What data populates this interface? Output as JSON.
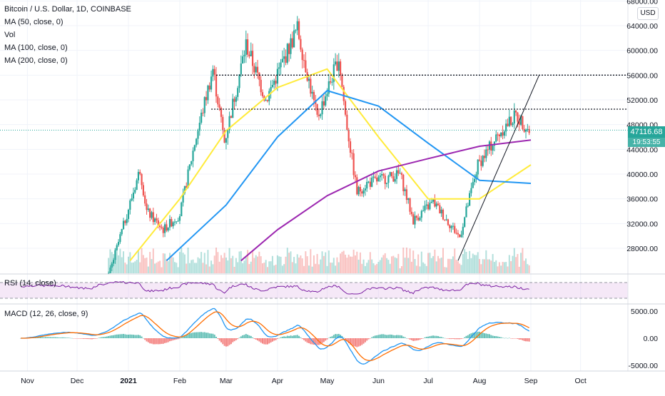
{
  "legend": {
    "title": "Bitcoin / U.S. Dollar, 1D, COINBASE",
    "indicators": [
      "MA (50, close, 0)",
      "Vol",
      "MA (100, close, 0)",
      "MA (200, close, 0)"
    ]
  },
  "price_axis": {
    "ticks": [
      "68000.00",
      "64000.00",
      "60000.00",
      "56000.00",
      "52000.00",
      "48000.00",
      "44000.00",
      "40000.00",
      "36000.00",
      "32000.00",
      "28000.00"
    ],
    "currency": "USD"
  },
  "last_price": {
    "value": "47116.68",
    "countdown": "19:53:55",
    "color": "#26a69a"
  },
  "rsi": {
    "label": "RSI (14, close)"
  },
  "macd": {
    "label": "MACD (12, 26, close, 9)",
    "ticks": [
      "5000.00",
      "0.00",
      "-5000.00"
    ]
  },
  "time_axis": {
    "labels": [
      "Nov",
      "Dec",
      "2021",
      "Feb",
      "Mar",
      "Apr",
      "May",
      "Jun",
      "Jul",
      "Aug",
      "Sep",
      "Oct"
    ]
  },
  "colors": {
    "up": "#26a69a",
    "down": "#ef5350",
    "ma50": "#ffeb3b",
    "ma100": "#2196f3",
    "ma200": "#9c27b0",
    "macd": "#2196f3",
    "signal": "#ff6d00",
    "rsi": "#7b1fa2"
  },
  "chart_data": [
    {
      "type": "line",
      "title": "Bitcoin / U.S. Dollar, 1D, COINBASE",
      "x": [
        "Nov",
        "Dec",
        "2021",
        "Feb",
        "Mar",
        "Apr",
        "May",
        "Jun",
        "Jul",
        "Aug",
        "Sep",
        "Oct"
      ],
      "ylim": [
        26000,
        68000
      ],
      "series": [
        {
          "name": "MA (50, close, 0)",
          "points": [
            [
              "2021-01-02",
              26000
            ],
            [
              "2021-02-01",
              36000
            ],
            [
              "2021-03-01",
              47000
            ],
            [
              "2021-04-01",
              54000
            ],
            [
              "2021-05-01",
              57000
            ],
            [
              "2021-06-01",
              46000
            ],
            [
              "2021-07-01",
              36000
            ],
            [
              "2021-08-01",
              36000
            ],
            [
              "2021-09-01",
              41500
            ]
          ]
        },
        {
          "name": "MA (100, close, 0)",
          "points": [
            [
              "2021-01-24",
              26000
            ],
            [
              "2021-03-01",
              35000
            ],
            [
              "2021-04-01",
              46000
            ],
            [
              "2021-05-01",
              53500
            ],
            [
              "2021-06-01",
              51000
            ],
            [
              "2021-07-01",
              45000
            ],
            [
              "2021-08-01",
              39000
            ],
            [
              "2021-09-01",
              38500
            ]
          ]
        },
        {
          "name": "MA (200, close, 0)",
          "points": [
            [
              "2021-03-10",
              26000
            ],
            [
              "2021-04-01",
              31000
            ],
            [
              "2021-05-01",
              36500
            ],
            [
              "2021-06-01",
              40500
            ],
            [
              "2021-07-01",
              42500
            ],
            [
              "2021-08-01",
              44500
            ],
            [
              "2021-09-01",
              45500
            ]
          ]
        }
      ],
      "horizontal_levels": [
        56000,
        50500
      ],
      "trendline": [
        [
          "2021-07-19",
          26000
        ],
        [
          "2021-09-06",
          56000
        ]
      ],
      "last_price": 47116.68
    },
    {
      "type": "line",
      "title": "RSI (14, close)",
      "ylim": [
        0,
        100
      ]
    },
    {
      "type": "line",
      "title": "MACD (12, 26, close, 9)",
      "ylim": [
        -5800,
        5800
      ]
    }
  ]
}
